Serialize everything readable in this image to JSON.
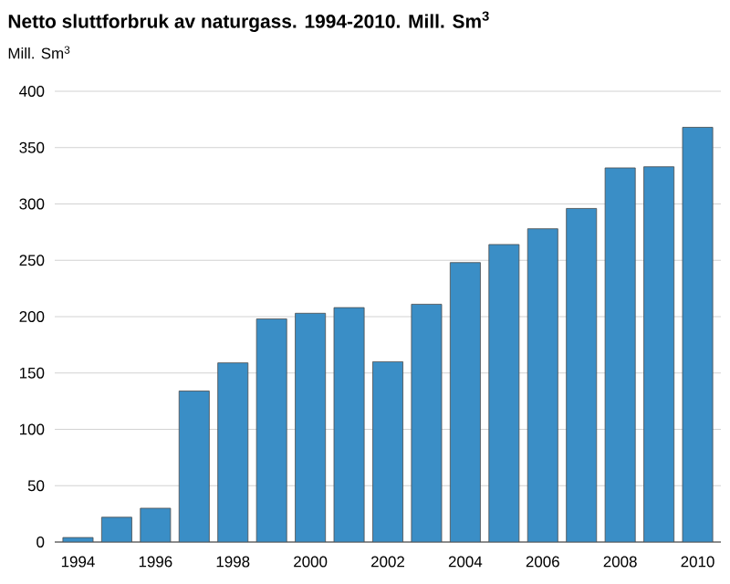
{
  "chart_data": {
    "type": "bar",
    "title": "Netto sluttforbruk av naturgass. 1994-2010. Mill. Sm$^{3}$",
    "ylabel": "Mill. Sm$^{3}$",
    "categories": [
      "1994",
      null,
      "1996",
      null,
      "1998",
      null,
      "2000",
      null,
      "2002",
      null,
      "2004",
      null,
      "2006",
      null,
      "2008",
      null,
      "2010"
    ],
    "values": [
      4,
      22,
      30,
      134,
      159,
      198,
      203,
      208,
      160,
      211,
      248,
      264,
      278,
      296,
      332,
      333,
      368
    ],
    "color": "#3a8ec6",
    "ylim": [
      0,
      400
    ],
    "yticks": [
      0,
      50,
      100,
      150,
      200,
      250,
      300,
      350,
      400
    ],
    "grid": "y"
  }
}
